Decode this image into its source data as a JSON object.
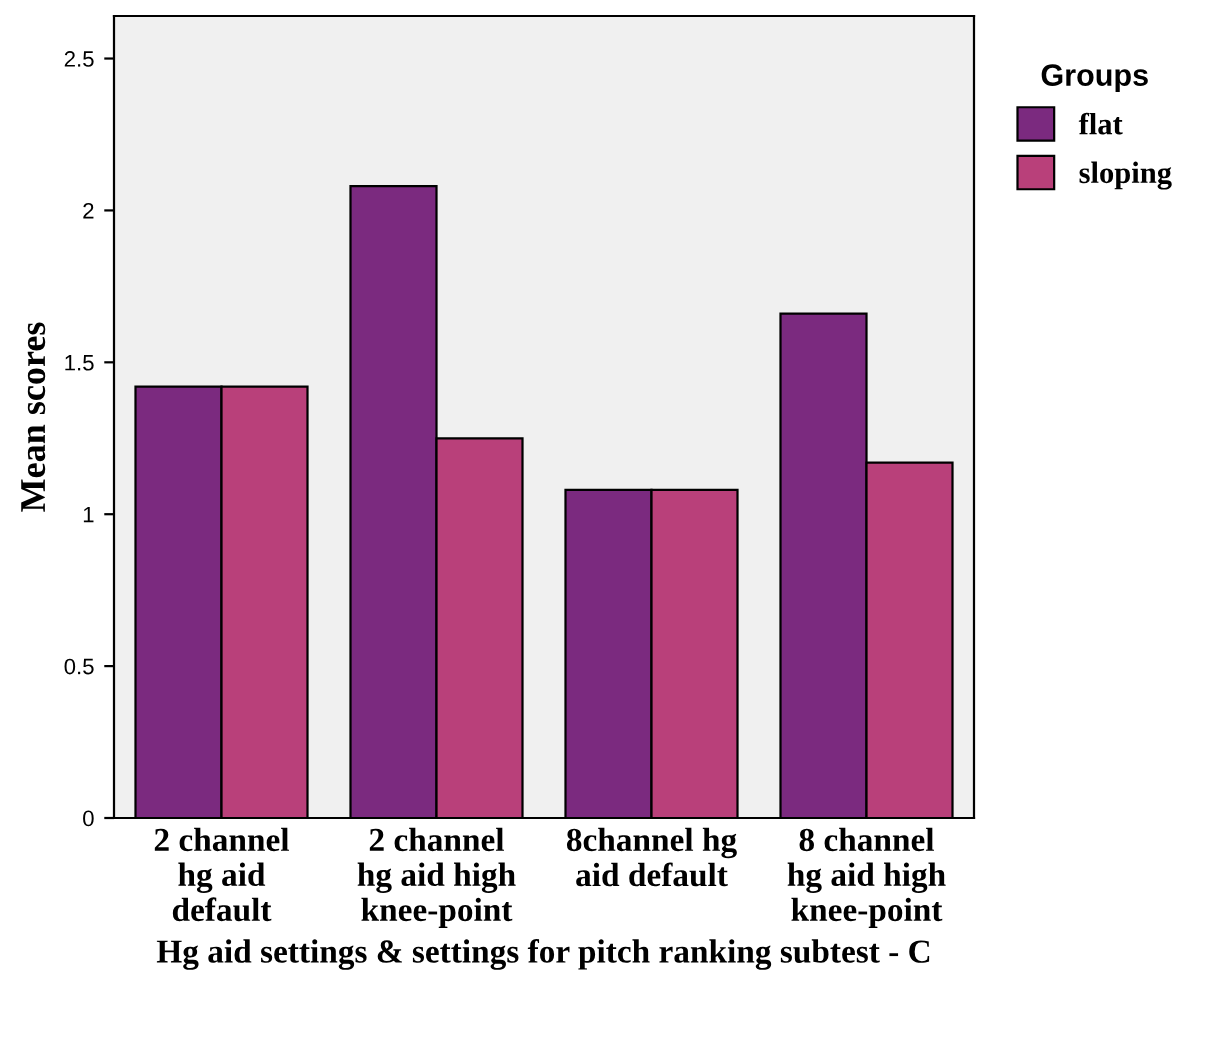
{
  "chart_data": {
    "type": "bar",
    "xlabel": "Hg aid settings & settings for pitch ranking subtest - C",
    "ylabel": "Mean scores",
    "legend_title": "Groups",
    "legend": "top right",
    "grid": false,
    "categories": [
      "2 channel\nhg aid\ndefault",
      "2 channel\nhg aid high\nknee-point",
      "8channel hg\naid default",
      "8 channel\nhg aid high\nknee-point"
    ],
    "series": [
      {
        "name": "flat",
        "color": "#7b2a7f",
        "values": [
          1.42,
          2.08,
          1.08,
          1.66
        ]
      },
      {
        "name": "sloping",
        "color": "#b9407a",
        "values": [
          1.42,
          1.25,
          1.08,
          1.17
        ]
      }
    ],
    "ylim": [
      0,
      2.64
    ],
    "yticks": [
      0,
      0.5,
      1,
      1.5,
      2,
      2.5
    ]
  }
}
